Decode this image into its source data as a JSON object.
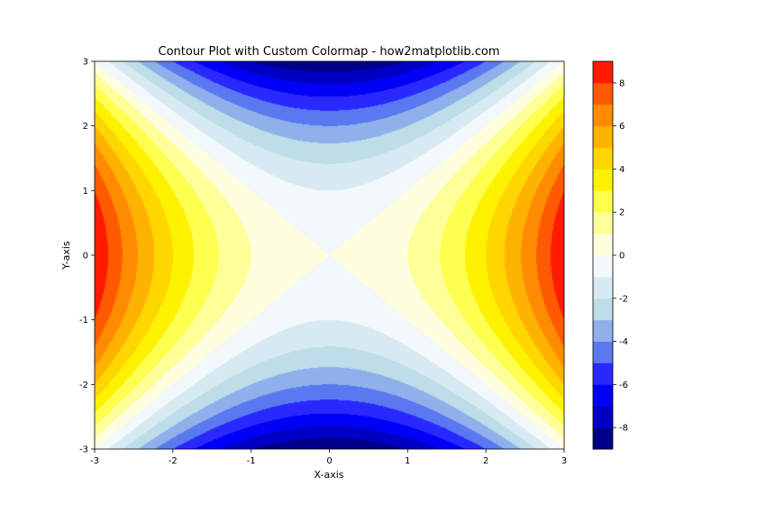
{
  "chart_data": {
    "type": "contour",
    "title": "Contour Plot with Custom Colormap - how2matplotlib.com",
    "xlabel": "X-axis",
    "ylabel": "Y-axis",
    "function": "x^2 - y^2",
    "xlim": [
      -3,
      3
    ],
    "ylim": [
      -3,
      3
    ],
    "x_ticks": [
      -3,
      -2,
      -1,
      0,
      1,
      2,
      3
    ],
    "y_ticks": [
      -3,
      -2,
      -1,
      0,
      1,
      2,
      3
    ],
    "levels": [
      -9,
      -8,
      -7,
      -6,
      -5,
      -4,
      -3,
      -2,
      -1,
      0,
      1,
      2,
      3,
      4,
      5,
      6,
      7,
      8,
      9
    ],
    "colorbar_ticks": [
      -8,
      -6,
      -4,
      -2,
      0,
      2,
      4,
      6,
      8
    ],
    "colors": [
      "#00008b",
      "#0000c4",
      "#0000f6",
      "#2828ff",
      "#5a78f0",
      "#8fb0ea",
      "#bddde9",
      "#d7eaf1",
      "#f2f8fb",
      "#ffffe0",
      "#ffff9a",
      "#ffff50",
      "#fff200",
      "#ffd700",
      "#ffb300",
      "#ff8c00",
      "#ff5a00",
      "#ff1a00"
    ],
    "grid": false,
    "colorbar": "right"
  }
}
